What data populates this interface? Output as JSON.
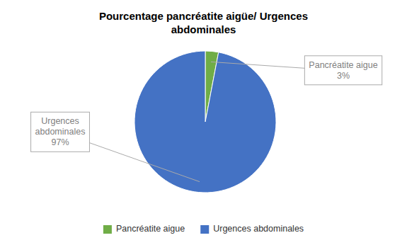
{
  "chart_data": {
    "type": "pie",
    "title": "Pourcentage pancréatite aigüe/ Urgences\nabdominales",
    "categories": [
      "Pancréatite aigue",
      "Urgences abdominales"
    ],
    "values": [
      3,
      97
    ],
    "colors": [
      "#70AD47",
      "#4472C4"
    ],
    "annotations": [
      "Pancréatite aigue\n3%",
      "Urgences\nabdominales\n97%"
    ],
    "legend": "bottom"
  }
}
